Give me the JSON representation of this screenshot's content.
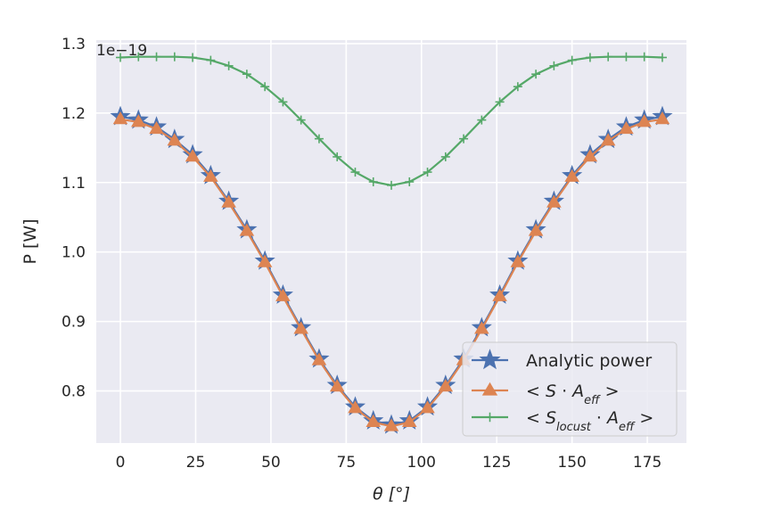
{
  "chart_data": {
    "type": "line",
    "title": "",
    "xlabel": "θ [°]",
    "ylabel": "P [W]",
    "offset_label": "1e−19",
    "xlim": [
      -8,
      188
    ],
    "ylim": [
      0.725,
      1.305
    ],
    "xticks": [
      0,
      25,
      50,
      75,
      100,
      125,
      150,
      175
    ],
    "yticks": [
      0.8,
      0.9,
      1.0,
      1.1,
      1.2,
      1.3
    ],
    "grid": true,
    "legend_position": "lower-right",
    "x": [
      0,
      6,
      12,
      18,
      24,
      30,
      36,
      42,
      48,
      54,
      60,
      66,
      72,
      78,
      84,
      90,
      96,
      102,
      108,
      114,
      120,
      126,
      132,
      138,
      144,
      150,
      156,
      162,
      168,
      174,
      180
    ],
    "series": [
      {
        "name": "Analytic power",
        "name_parts": [
          {
            "t": "Analytic power",
            "style": "normal"
          }
        ],
        "color": "#4c72b0",
        "marker": "star",
        "values": [
          1.195,
          1.19,
          1.18,
          1.162,
          1.14,
          1.11,
          1.073,
          1.032,
          0.987,
          0.938,
          0.891,
          0.846,
          0.808,
          0.777,
          0.757,
          0.751,
          0.757,
          0.777,
          0.808,
          0.846,
          0.891,
          0.938,
          0.987,
          1.032,
          1.073,
          1.11,
          1.14,
          1.162,
          1.18,
          1.19,
          1.195
        ]
      },
      {
        "name": "< S · A_eff >",
        "name_parts": [
          {
            "t": "< ",
            "style": "normal"
          },
          {
            "t": "S",
            "style": "italic"
          },
          {
            "t": " · ",
            "style": "normal"
          },
          {
            "t": "A",
            "style": "italic"
          },
          {
            "t": "eff",
            "style": "sub"
          },
          {
            "t": " >",
            "style": "normal"
          }
        ],
        "color": "#dd8452",
        "marker": "triangle",
        "values": [
          1.191,
          1.187,
          1.177,
          1.16,
          1.137,
          1.108,
          1.071,
          1.03,
          0.985,
          0.936,
          0.889,
          0.844,
          0.806,
          0.775,
          0.755,
          0.749,
          0.755,
          0.775,
          0.806,
          0.844,
          0.889,
          0.936,
          0.985,
          1.03,
          1.071,
          1.108,
          1.137,
          1.16,
          1.177,
          1.187,
          1.191
        ]
      },
      {
        "name": "< S_locust · A_eff >",
        "name_parts": [
          {
            "t": "< ",
            "style": "normal"
          },
          {
            "t": "S",
            "style": "italic"
          },
          {
            "t": "locust",
            "style": "sub"
          },
          {
            "t": " · ",
            "style": "normal"
          },
          {
            "t": "A",
            "style": "italic"
          },
          {
            "t": "eff",
            "style": "sub"
          },
          {
            "t": " >",
            "style": "normal"
          }
        ],
        "color": "#55a868",
        "marker": "plus",
        "values": [
          1.28,
          1.281,
          1.281,
          1.281,
          1.28,
          1.276,
          1.268,
          1.256,
          1.238,
          1.216,
          1.19,
          1.163,
          1.137,
          1.115,
          1.101,
          1.096,
          1.101,
          1.115,
          1.137,
          1.163,
          1.19,
          1.216,
          1.238,
          1.256,
          1.268,
          1.276,
          1.28,
          1.281,
          1.281,
          1.281,
          1.28
        ]
      }
    ]
  }
}
